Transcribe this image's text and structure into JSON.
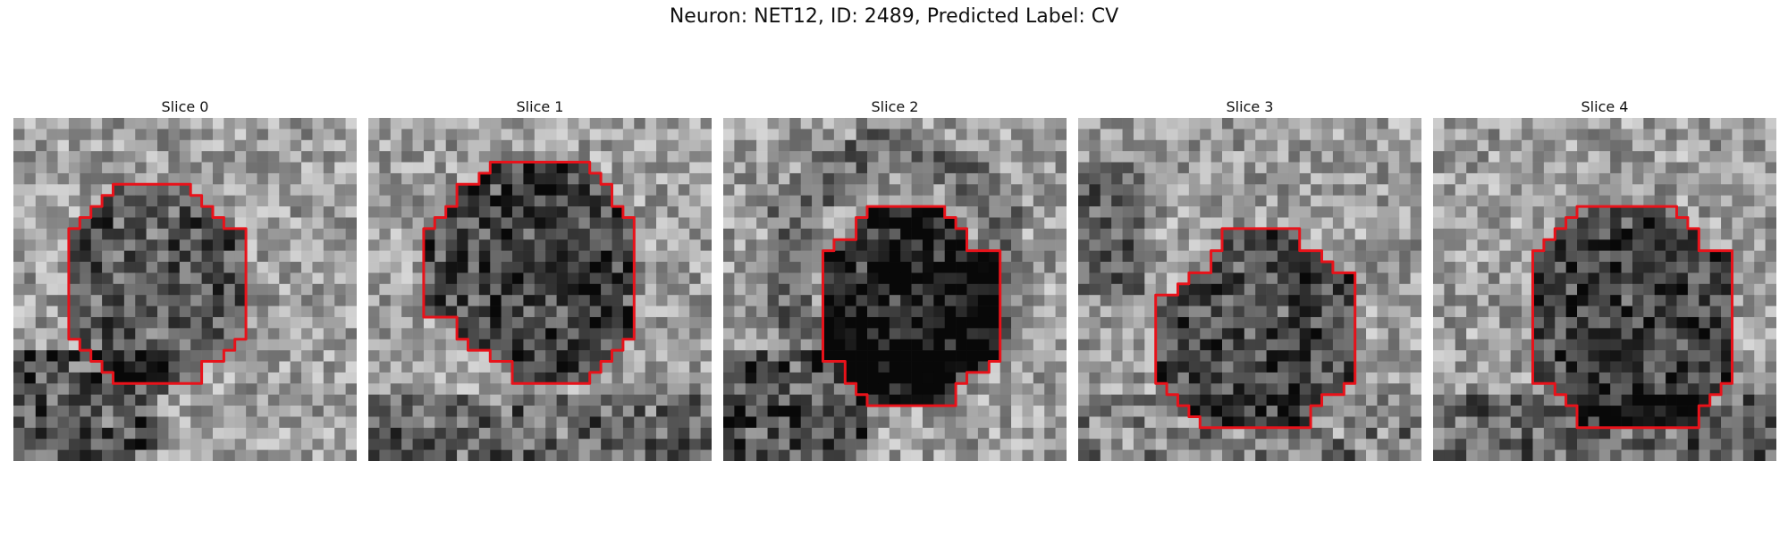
{
  "figure": {
    "title": "Neuron: NET12, ID: 2489, Predicted Label: CV",
    "outline_color": "#e8121a"
  },
  "slices": [
    {
      "title": "Slice 0",
      "center_dark": 0.3,
      "dark_band": "bottom-left"
    },
    {
      "title": "Slice 1",
      "center_dark": 0.4,
      "dark_band": "bottom"
    },
    {
      "title": "Slice 2",
      "center_dark": 0.55,
      "dark_band": "bottom-left"
    },
    {
      "title": "Slice 3",
      "center_dark": 0.35,
      "dark_band": "left"
    },
    {
      "title": "Slice 4",
      "center_dark": 0.4,
      "dark_band": "bottom"
    }
  ]
}
